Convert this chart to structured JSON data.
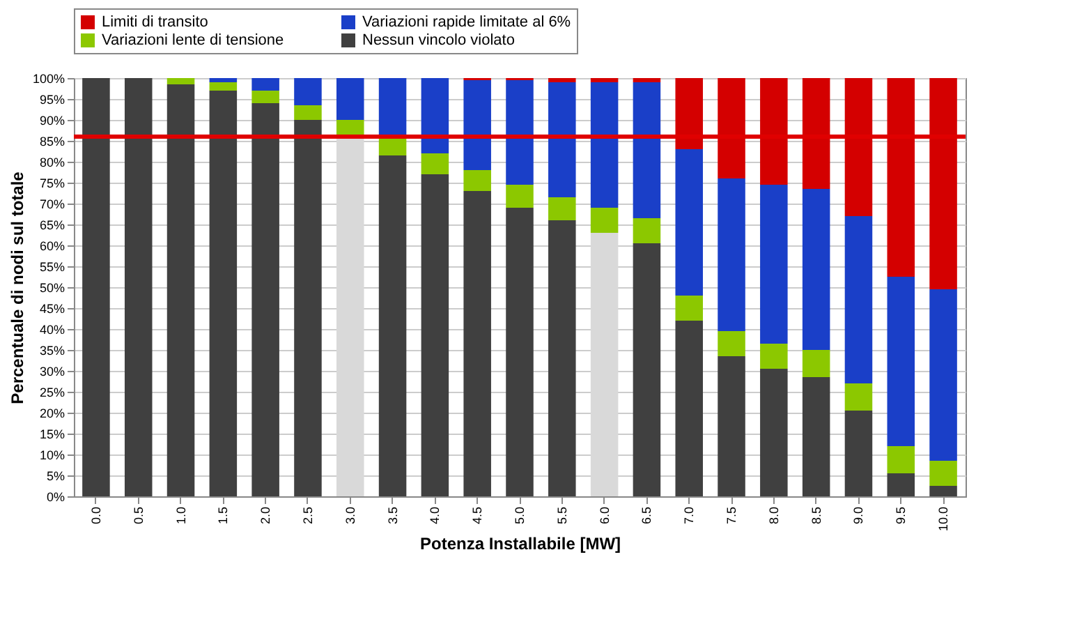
{
  "chart_data": {
    "type": "bar",
    "stacked": true,
    "xlabel": "Potenza Installabile [MW]",
    "ylabel": "Percentuale di nodi sul totale",
    "categories": [
      "0.0",
      "0.5",
      "1.0",
      "1.5",
      "2.0",
      "2.5",
      "3.0",
      "3.5",
      "4.0",
      "4.5",
      "5.0",
      "5.5",
      "6.0",
      "6.5",
      "7.0",
      "7.5",
      "8.0",
      "8.5",
      "9.0",
      "9.5",
      "10.0"
    ],
    "series": [
      {
        "name": "Nessun vincolo violato",
        "color": "#404040",
        "colors": [
          "#404040",
          "#404040",
          "#404040",
          "#404040",
          "#404040",
          "#404040",
          "#d9d9d9",
          "#404040",
          "#404040",
          "#404040",
          "#404040",
          "#404040",
          "#d9d9d9",
          "#404040",
          "#404040",
          "#404040",
          "#404040",
          "#404040",
          "#404040",
          "#404040",
          "#404040"
        ],
        "values": [
          100,
          100,
          98.5,
          97,
          94,
          90,
          86,
          81.5,
          77,
          73,
          69,
          66,
          63,
          60.5,
          42,
          33.5,
          30.5,
          28.5,
          20.5,
          5.5,
          2.5
        ]
      },
      {
        "name": "Variazioni lente di tensione",
        "color": "#8cc800",
        "values": [
          0,
          0,
          1.5,
          2,
          3,
          3.5,
          4,
          4.5,
          5,
          5,
          5.5,
          5.5,
          6,
          6,
          6,
          6,
          6,
          6.5,
          6.5,
          6.5,
          6
        ]
      },
      {
        "name": "Variazioni rapide limitate al 6%",
        "color": "#1a3fc8",
        "values": [
          0,
          0,
          0,
          1,
          3,
          6.5,
          10,
          14,
          18,
          21.5,
          25,
          27.5,
          30,
          32.5,
          35,
          36.5,
          38,
          38.5,
          40,
          40.5,
          41
        ]
      },
      {
        "name": "Limiti di transito",
        "color": "#d40000",
        "values": [
          0,
          0,
          0,
          0,
          0,
          0,
          0,
          0,
          0,
          0.5,
          0.5,
          1,
          1,
          1,
          17,
          24,
          25.5,
          26.5,
          33,
          47.5,
          50.5
        ]
      }
    ],
    "ylim": [
      0,
      100
    ],
    "yticks": [
      {
        "value": 0,
        "label": "0%"
      },
      {
        "value": 5,
        "label": "5%"
      },
      {
        "value": 10,
        "label": "10%"
      },
      {
        "value": 15,
        "label": "15%"
      },
      {
        "value": 20,
        "label": "20%"
      },
      {
        "value": 25,
        "label": "25%"
      },
      {
        "value": 30,
        "label": "30%"
      },
      {
        "value": 35,
        "label": "35%"
      },
      {
        "value": 40,
        "label": "40%"
      },
      {
        "value": 45,
        "label": "45%"
      },
      {
        "value": 50,
        "label": "50%"
      },
      {
        "value": 55,
        "label": "55%"
      },
      {
        "value": 60,
        "label": "60%"
      },
      {
        "value": 65,
        "label": "65%"
      },
      {
        "value": 70,
        "label": "70%"
      },
      {
        "value": 75,
        "label": "75%"
      },
      {
        "value": 80,
        "label": "80%"
      },
      {
        "value": 85,
        "label": "85%"
      },
      {
        "value": 90,
        "label": "90%"
      },
      {
        "value": 95,
        "label": "95%"
      },
      {
        "value": 100,
        "label": "100%"
      }
    ],
    "ref_lines": [
      {
        "axis": "y",
        "value": 86,
        "color": "#e00000"
      }
    ],
    "grid": "y",
    "legend": "top"
  }
}
